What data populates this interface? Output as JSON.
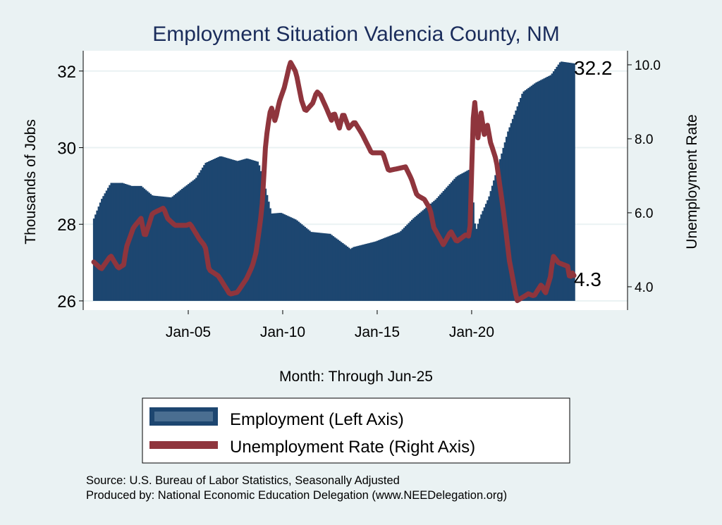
{
  "chart_data": {
    "type": "bar+line",
    "title": "Employment Situation Valencia  County, NM",
    "xlabel": "Month: Through Jun-25",
    "ylabel_left": "Thousands of Jobs",
    "ylabel_right": "Unemployment Rate",
    "x_range": [
      1999.44,
      2028.25
    ],
    "x_ticks": [
      {
        "value": 2005,
        "label": "Jan-05"
      },
      {
        "value": 2010,
        "label": "Jan-10"
      },
      {
        "value": 2015,
        "label": "Jan-15"
      },
      {
        "value": 2020,
        "label": "Jan-20"
      }
    ],
    "ylim_left": [
      25.76,
      32.53
    ],
    "ylim_right": [
      3.37,
      10.38
    ],
    "y_ticks_left": [
      {
        "value": 26,
        "label": "26"
      },
      {
        "value": 28,
        "label": "28"
      },
      {
        "value": 30,
        "label": "30"
      },
      {
        "value": 32,
        "label": "32"
      }
    ],
    "y_ticks_right": [
      {
        "value": 4,
        "label": "4.0"
      },
      {
        "value": 6,
        "label": "6.0"
      },
      {
        "value": 8,
        "label": "8.0"
      },
      {
        "value": 10,
        "label": "10.0"
      }
    ],
    "grid": true,
    "date_start": 2000.0,
    "date_end": 2025.42,
    "series": [
      {
        "name": "Employment (Left Axis)",
        "type": "bar",
        "axis": "left",
        "color": "#1d4670",
        "legend_inner_color": "#4a6e91",
        "baseline": 26,
        "end_label": "32.2",
        "points": [
          [
            2000.0,
            28.15
          ],
          [
            2000.4,
            28.65
          ],
          [
            2000.9,
            29.08
          ],
          [
            2001.5,
            29.08
          ],
          [
            2002.0,
            29.0
          ],
          [
            2002.5,
            29.0
          ],
          [
            2003.1,
            28.75
          ],
          [
            2004.1,
            28.7
          ],
          [
            2004.6,
            28.9
          ],
          [
            2005.4,
            29.2
          ],
          [
            2005.9,
            29.6
          ],
          [
            2006.7,
            29.78
          ],
          [
            2007.6,
            29.65
          ],
          [
            2008.1,
            29.72
          ],
          [
            2008.7,
            29.63
          ],
          [
            2009.1,
            28.9
          ],
          [
            2009.4,
            28.28
          ],
          [
            2009.9,
            28.3
          ],
          [
            2010.7,
            28.12
          ],
          [
            2011.5,
            27.8
          ],
          [
            2012.5,
            27.75
          ],
          [
            2013.6,
            27.35
          ],
          [
            2013.7,
            27.4
          ],
          [
            2014.9,
            27.55
          ],
          [
            2016.2,
            27.8
          ],
          [
            2016.9,
            28.15
          ],
          [
            2018.1,
            28.65
          ],
          [
            2019.2,
            29.25
          ],
          [
            2019.95,
            29.45
          ],
          [
            2020.2,
            27.8
          ],
          [
            2020.45,
            28.2
          ],
          [
            2020.9,
            28.7
          ],
          [
            2021.5,
            29.7
          ],
          [
            2021.9,
            30.4
          ],
          [
            2022.7,
            31.45
          ],
          [
            2023.4,
            31.7
          ],
          [
            2024.2,
            31.9
          ],
          [
            2024.7,
            32.25
          ],
          [
            2025.42,
            32.2
          ]
        ]
      },
      {
        "name": "Unemployment Rate (Right Axis)",
        "type": "line",
        "axis": "right",
        "color": "#8f353d",
        "end_label": "4.3",
        "points": [
          [
            2000.0,
            4.67
          ],
          [
            2000.4,
            4.48
          ],
          [
            2000.9,
            4.84
          ],
          [
            2001.3,
            4.5
          ],
          [
            2001.6,
            4.6
          ],
          [
            2001.7,
            5.03
          ],
          [
            2002.1,
            5.6
          ],
          [
            2002.5,
            5.85
          ],
          [
            2002.7,
            5.33
          ],
          [
            2003.1,
            5.98
          ],
          [
            2003.7,
            6.13
          ],
          [
            2003.9,
            5.85
          ],
          [
            2004.3,
            5.66
          ],
          [
            2004.9,
            5.66
          ],
          [
            2005.1,
            5.7
          ],
          [
            2005.6,
            5.28
          ],
          [
            2005.9,
            5.09
          ],
          [
            2006.1,
            4.46
          ],
          [
            2006.6,
            4.29
          ],
          [
            2007.2,
            3.8
          ],
          [
            2007.6,
            3.85
          ],
          [
            2008.1,
            4.23
          ],
          [
            2008.4,
            4.57
          ],
          [
            2008.6,
            4.95
          ],
          [
            2008.9,
            6.1
          ],
          [
            2009.1,
            7.9
          ],
          [
            2009.3,
            8.65
          ],
          [
            2009.4,
            8.86
          ],
          [
            2009.6,
            8.46
          ],
          [
            2009.8,
            8.97
          ],
          [
            2010.1,
            9.41
          ],
          [
            2010.4,
            10.08
          ],
          [
            2010.7,
            9.8
          ],
          [
            2011.0,
            9.03
          ],
          [
            2011.2,
            8.74
          ],
          [
            2011.6,
            8.97
          ],
          [
            2011.8,
            9.28
          ],
          [
            2012.0,
            9.18
          ],
          [
            2012.3,
            8.84
          ],
          [
            2012.6,
            8.48
          ],
          [
            2012.7,
            8.74
          ],
          [
            2013.0,
            8.29
          ],
          [
            2013.2,
            8.7
          ],
          [
            2013.5,
            8.29
          ],
          [
            2013.8,
            8.46
          ],
          [
            2014.2,
            8.13
          ],
          [
            2014.7,
            7.62
          ],
          [
            2015.3,
            7.62
          ],
          [
            2015.6,
            7.14
          ],
          [
            2016.5,
            7.24
          ],
          [
            2016.8,
            6.93
          ],
          [
            2017.1,
            6.48
          ],
          [
            2017.5,
            6.36
          ],
          [
            2017.8,
            6.1
          ],
          [
            2018.0,
            5.6
          ],
          [
            2018.5,
            5.14
          ],
          [
            2018.9,
            5.5
          ],
          [
            2019.2,
            5.22
          ],
          [
            2019.7,
            5.41
          ],
          [
            2019.9,
            5.35
          ],
          [
            2020.1,
            8.84
          ],
          [
            2020.2,
            9.05
          ],
          [
            2020.3,
            7.89
          ],
          [
            2020.5,
            8.7
          ],
          [
            2020.7,
            8.0
          ],
          [
            2020.8,
            8.46
          ],
          [
            2021.0,
            7.9
          ],
          [
            2021.3,
            7.43
          ],
          [
            2021.7,
            5.98
          ],
          [
            2022.0,
            4.7
          ],
          [
            2022.4,
            3.62
          ],
          [
            2023.0,
            3.81
          ],
          [
            2023.3,
            3.75
          ],
          [
            2023.7,
            4.07
          ],
          [
            2023.9,
            3.81
          ],
          [
            2024.2,
            4.32
          ],
          [
            2024.3,
            4.84
          ],
          [
            2024.6,
            4.65
          ],
          [
            2025.1,
            4.55
          ],
          [
            2025.2,
            4.17
          ],
          [
            2025.3,
            4.4
          ],
          [
            2025.42,
            4.3
          ]
        ]
      }
    ],
    "legend_position": "bottom"
  },
  "source": {
    "line1": "Source: U.S. Bureau of Labor Statistics, Seasonally Adjusted",
    "line2": "Produced by: National Economic Education Delegation (www.NEEDelegation.org)"
  }
}
